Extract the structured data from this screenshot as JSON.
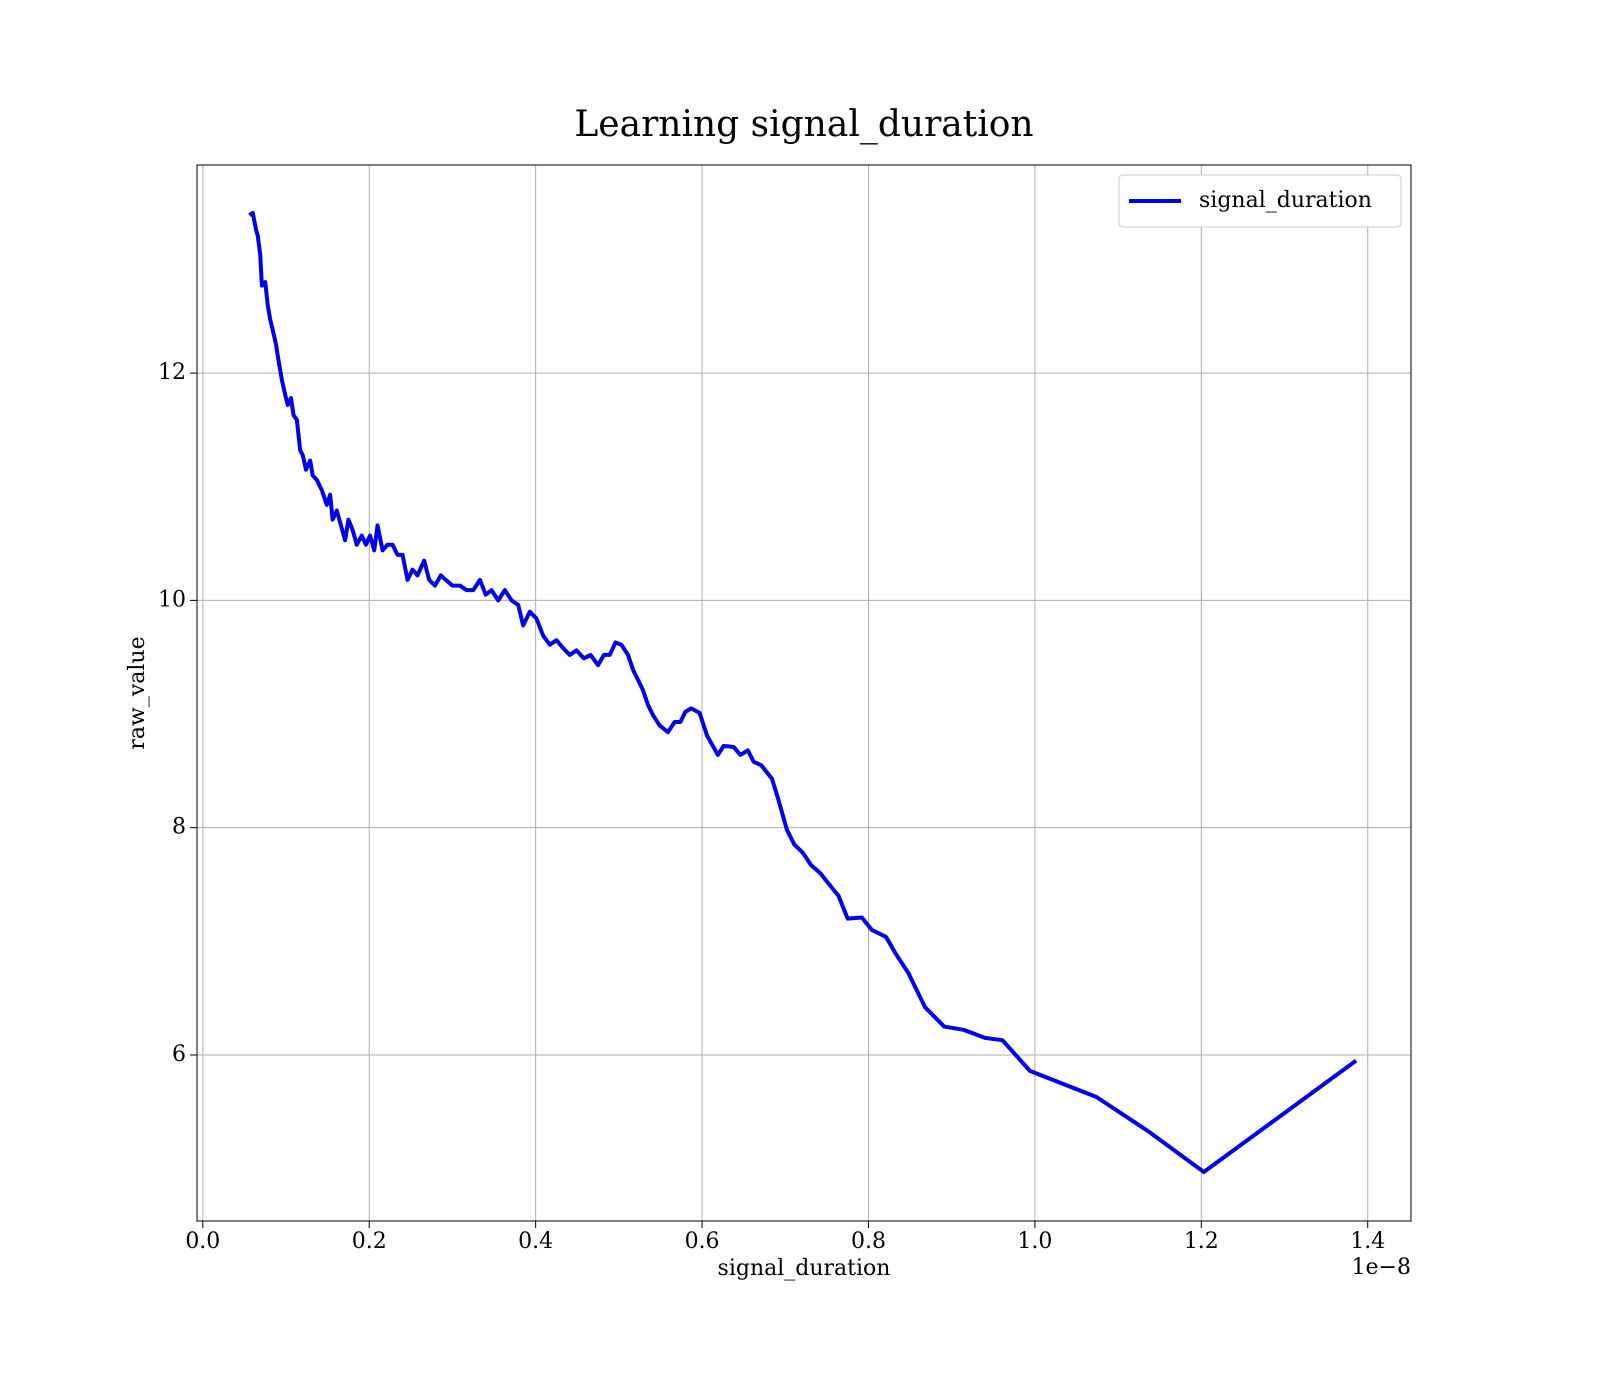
{
  "chart_data": {
    "type": "line",
    "title": "Learning signal_duration",
    "xlabel": "signal_duration",
    "ylabel": "raw_value",
    "x_offset_label": "1e−8",
    "xlim": [
      -0.007,
      1.452
    ],
    "ylim": [
      4.539,
      13.831
    ],
    "xticks": [
      {
        "value": 0,
        "label": "0.0"
      },
      0.2,
      0.4,
      0.6,
      0.8,
      {
        "value": 1,
        "label": "1.0"
      },
      1.2,
      1.4
    ],
    "yticks": [
      6,
      8,
      10,
      12
    ],
    "grid": true,
    "legend": "upper right",
    "x": [
      0.056,
      0.06,
      0.064,
      0.066,
      0.069,
      0.071,
      0.075,
      0.078,
      0.081,
      0.084,
      0.088,
      0.091,
      0.095,
      0.099,
      0.102,
      0.106,
      0.109,
      0.113,
      0.117,
      0.12,
      0.124,
      0.129,
      0.132,
      0.137,
      0.143,
      0.149,
      0.153,
      0.156,
      0.161,
      0.166,
      0.171,
      0.175,
      0.18,
      0.185,
      0.191,
      0.196,
      0.201,
      0.206,
      0.21,
      0.216,
      0.222,
      0.228,
      0.234,
      0.24,
      0.246,
      0.252,
      0.258,
      0.266,
      0.272,
      0.279,
      0.286,
      0.292,
      0.3,
      0.309,
      0.317,
      0.325,
      0.333,
      0.34,
      0.347,
      0.355,
      0.363,
      0.371,
      0.379,
      0.385,
      0.393,
      0.401,
      0.409,
      0.417,
      0.425,
      0.433,
      0.441,
      0.449,
      0.458,
      0.466,
      0.475,
      0.482,
      0.489,
      0.496,
      0.503,
      0.511,
      0.517,
      0.523,
      0.529,
      0.535,
      0.541,
      0.549,
      0.559,
      0.567,
      0.574,
      0.58,
      0.587,
      0.597,
      0.606,
      0.619,
      0.626,
      0.638,
      0.646,
      0.655,
      0.662,
      0.671,
      0.684,
      0.692,
      0.702,
      0.711,
      0.721,
      0.731,
      0.742,
      0.754,
      0.764,
      0.775,
      0.792,
      0.804,
      0.821,
      0.832,
      0.848,
      0.868,
      0.891,
      0.915,
      0.94,
      0.961,
      0.994,
      1.074,
      1.136,
      1.203,
      1.386
    ],
    "series": [
      {
        "name": "signal_duration",
        "color": "#0000ee",
        "values": [
          13.39,
          13.41,
          13.26,
          13.21,
          13.04,
          12.77,
          12.8,
          12.6,
          12.47,
          12.38,
          12.25,
          12.11,
          11.94,
          11.81,
          11.72,
          11.78,
          11.63,
          11.59,
          11.32,
          11.28,
          11.15,
          11.23,
          11.1,
          11.06,
          10.97,
          10.84,
          10.93,
          10.71,
          10.79,
          10.66,
          10.53,
          10.71,
          10.62,
          10.49,
          10.57,
          10.49,
          10.57,
          10.44,
          10.66,
          10.44,
          10.49,
          10.49,
          10.4,
          10.4,
          10.18,
          10.27,
          10.22,
          10.35,
          10.18,
          10.13,
          10.22,
          10.18,
          10.13,
          10.13,
          10.09,
          10.09,
          10.18,
          10.05,
          10.09,
          10.0,
          10.09,
          10.0,
          9.96,
          9.78,
          9.9,
          9.84,
          9.69,
          9.61,
          9.65,
          9.58,
          9.52,
          9.56,
          9.49,
          9.52,
          9.43,
          9.52,
          9.52,
          9.63,
          9.61,
          9.52,
          9.39,
          9.3,
          9.21,
          9.08,
          8.99,
          8.9,
          8.84,
          8.93,
          8.93,
          9.02,
          9.05,
          9.01,
          8.81,
          8.64,
          8.72,
          8.71,
          8.64,
          8.68,
          8.58,
          8.55,
          8.43,
          8.24,
          7.98,
          7.85,
          7.78,
          7.67,
          7.6,
          7.49,
          7.4,
          7.2,
          7.21,
          7.1,
          7.04,
          6.9,
          6.72,
          6.42,
          6.25,
          6.22,
          6.15,
          6.13,
          5.86,
          5.63,
          5.33,
          4.97,
          5.95
        ]
      }
    ]
  }
}
